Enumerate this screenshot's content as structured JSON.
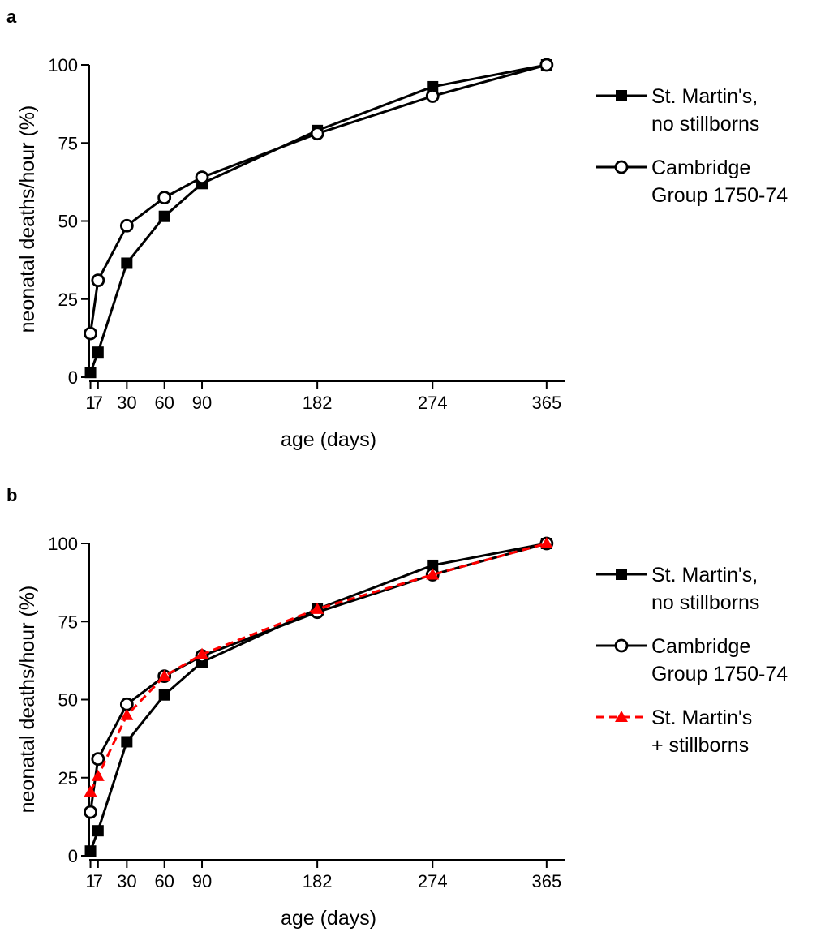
{
  "chart_data": [
    {
      "panel": "a",
      "type": "line",
      "xlabel": "age (days)",
      "ylabel": "neonatal deaths/hour (%)",
      "xlim": [
        0,
        380
      ],
      "ylim": [
        0,
        100
      ],
      "xticks": [
        1,
        7,
        30,
        60,
        90,
        182,
        274,
        365
      ],
      "yticks": [
        0,
        25,
        50,
        75,
        100
      ],
      "legend_position": "right",
      "series": [
        {
          "name_lines": [
            "St. Martin's,",
            "no stillborns"
          ],
          "color": "#000000",
          "line_style": "solid",
          "marker": "filled-square",
          "x": [
            1,
            7,
            30,
            60,
            90,
            182,
            274,
            365
          ],
          "y": [
            1.5,
            8,
            36.5,
            51.5,
            62,
            79,
            93,
            100
          ]
        },
        {
          "name_lines": [
            "Cambridge",
            "Group 1750-74"
          ],
          "color": "#000000",
          "line_style": "solid",
          "marker": "open-circle",
          "x": [
            1,
            7,
            30,
            60,
            90,
            182,
            274,
            365
          ],
          "y": [
            14,
            31,
            48.5,
            57.5,
            64,
            78,
            90,
            100
          ]
        }
      ]
    },
    {
      "panel": "b",
      "type": "line",
      "xlabel": "age (days)",
      "ylabel": "neonatal deaths/hour (%)",
      "xlim": [
        0,
        380
      ],
      "ylim": [
        0,
        100
      ],
      "xticks": [
        1,
        7,
        30,
        60,
        90,
        182,
        274,
        365
      ],
      "yticks": [
        0,
        25,
        50,
        75,
        100
      ],
      "legend_position": "right",
      "series": [
        {
          "name_lines": [
            "St. Martin's,",
            "no stillborns"
          ],
          "color": "#000000",
          "line_style": "solid",
          "marker": "filled-square",
          "x": [
            1,
            7,
            30,
            60,
            90,
            182,
            274,
            365
          ],
          "y": [
            1.5,
            8,
            36.5,
            51.5,
            62,
            79,
            93,
            100
          ]
        },
        {
          "name_lines": [
            "Cambridge",
            "Group 1750-74"
          ],
          "color": "#000000",
          "line_style": "solid",
          "marker": "open-circle",
          "x": [
            1,
            7,
            30,
            60,
            90,
            182,
            274,
            365
          ],
          "y": [
            14,
            31,
            48.5,
            57.5,
            64,
            78,
            90,
            100
          ]
        },
        {
          "name_lines": [
            "St. Martin's",
            "+ stillborns"
          ],
          "color": "#ff0000",
          "line_style": "dashed",
          "marker": "filled-triangle",
          "x": [
            1,
            7,
            30,
            60,
            90,
            182,
            274,
            365
          ],
          "y": [
            20.5,
            25.5,
            45,
            57.5,
            64.5,
            79,
            90,
            100
          ]
        }
      ]
    }
  ]
}
